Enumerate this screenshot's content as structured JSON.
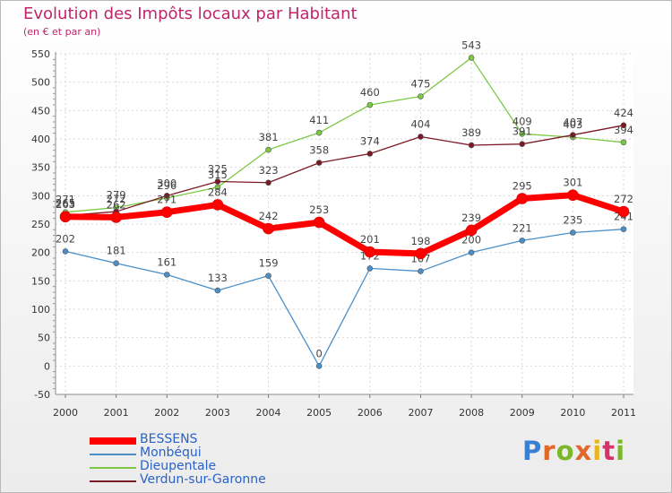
{
  "title": "Evolution des Impôts locaux par Habitant",
  "subtitle": "(en € et par an)",
  "logo": {
    "letters": [
      "P",
      "r",
      "o",
      "x",
      "i",
      "t",
      "i"
    ],
    "colors": [
      "#3b7fd0",
      "#e2682a",
      "#7ab829",
      "#e2682a",
      "#e8b51e",
      "#d8326c",
      "#7ab829"
    ]
  },
  "chart_data": {
    "type": "line",
    "x": [
      "2000",
      "2001",
      "2002",
      "2003",
      "2004",
      "2005",
      "2006",
      "2007",
      "2008",
      "2009",
      "2010",
      "2011"
    ],
    "ylim": [
      -50,
      550
    ],
    "yticks": [
      "-50",
      "0",
      "50",
      "100",
      "150",
      "200",
      "250",
      "300",
      "350",
      "400",
      "450",
      "500",
      "550"
    ],
    "grid": true,
    "legend_position": "bottom-left",
    "series": [
      {
        "name": "BESSENS",
        "color": "#ff0000",
        "values": [
          263,
          262,
          271,
          284,
          242,
          253,
          201,
          198,
          239,
          295,
          301,
          272
        ],
        "labels": [
          "263",
          "262",
          "271",
          "284",
          "242",
          "253",
          "201",
          "198",
          "239",
          "295",
          "301",
          "272"
        ]
      },
      {
        "name": "Monbéqui",
        "color": "#4a8fc8",
        "values": [
          202,
          181,
          161,
          133,
          159,
          0,
          172,
          167,
          200,
          221,
          235,
          241
        ],
        "labels": [
          "202",
          "181",
          "161",
          "133",
          "159",
          "0",
          "172",
          "167",
          "200",
          "221",
          "235",
          "241"
        ]
      },
      {
        "name": "Dieupentale",
        "color": "#7ac943",
        "values": [
          271,
          279,
          296,
          315,
          381,
          411,
          460,
          475,
          543,
          409,
          403,
          394
        ],
        "labels": [
          "271",
          "279",
          "296",
          "315",
          "381",
          "411",
          "460",
          "475",
          "543",
          "409",
          "403",
          "394"
        ]
      },
      {
        "name": "Verdun-sur-Garonne",
        "color": "#7b1a26",
        "values": [
          265,
          272,
          300,
          325,
          323,
          358,
          374,
          404,
          389,
          391,
          407,
          424
        ],
        "labels": [
          "265",
          "272",
          "300",
          "325",
          "323",
          "358",
          "374",
          "404",
          "389",
          "391",
          "407",
          "424"
        ]
      }
    ]
  }
}
